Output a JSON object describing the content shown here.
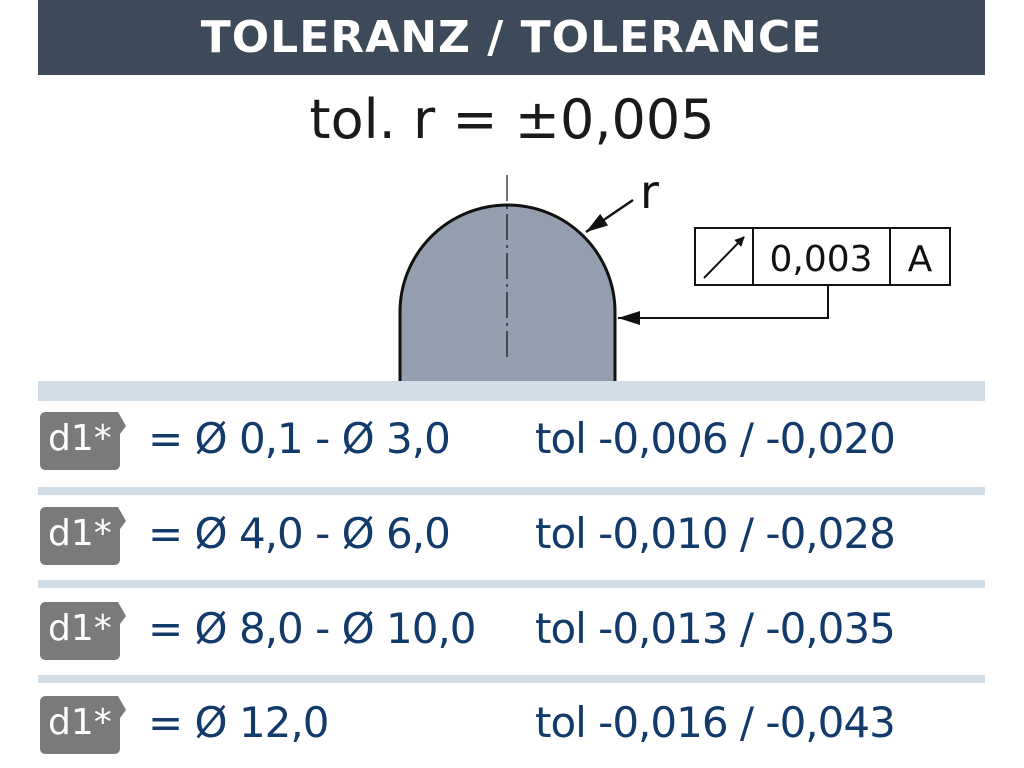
{
  "header": {
    "title": "TOLERANZ / TOLERANCE"
  },
  "formula": "tol. r = ±0,005",
  "drawing": {
    "radius_label": "r",
    "frame": {
      "symbol": "circular-runout-icon",
      "value": "0,003",
      "datum": "A"
    }
  },
  "colors": {
    "header": "#3d4a5a",
    "separator": "#d0dce6",
    "text": "#123a6b",
    "badge": "#7a7a7a",
    "part": "#939eae"
  },
  "rows": [
    {
      "badge": "d1*",
      "range": "= Ø 0,1 - Ø 3,0",
      "tol": "tol -0,006 / -0,020"
    },
    {
      "badge": "d1*",
      "range": "= Ø 4,0 - Ø 6,0",
      "tol": "tol -0,010 / -0,028"
    },
    {
      "badge": "d1*",
      "range": "= Ø 8,0 - Ø 10,0",
      "tol": "tol -0,013 / -0,035"
    },
    {
      "badge": "d1*",
      "range": "= Ø 12,0",
      "tol": "tol -0,016 / -0,043"
    }
  ]
}
